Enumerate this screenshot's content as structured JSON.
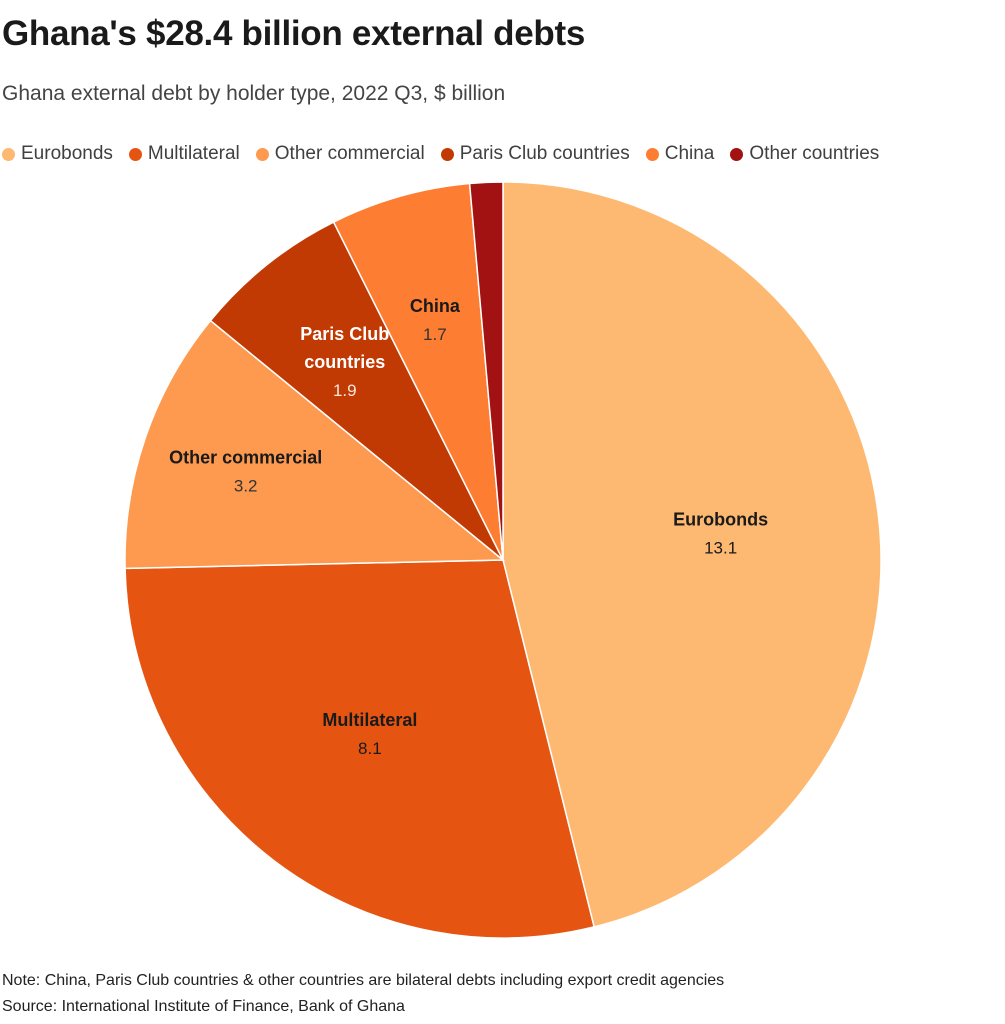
{
  "title": "Ghana's $28.4 billion external debts",
  "subtitle": "Ghana external debt by holder type, 2022 Q3, $ billion",
  "legend": [
    {
      "label": "Eurobonds",
      "color": "#fdb871"
    },
    {
      "label": "Multilateral",
      "color": "#e55511"
    },
    {
      "label": "Other commercial",
      "color": "#fd9a50"
    },
    {
      "label": "Paris Club countries",
      "color": "#c23a03"
    },
    {
      "label": "China",
      "color": "#fd7d32"
    },
    {
      "label": "Other countries",
      "color": "#a31212"
    }
  ],
  "chart_data": {
    "type": "pie",
    "categories": [
      "Eurobonds",
      "Multilateral",
      "Other commercial",
      "Paris Club countries",
      "China",
      "Other countries"
    ],
    "values": [
      13.1,
      8.1,
      3.2,
      1.9,
      1.7,
      0.4
    ],
    "slice_labels": [
      {
        "name_lines": [
          "Eurobonds"
        ],
        "value": "13.1"
      },
      {
        "name_lines": [
          "Multilateral"
        ],
        "value": "8.1"
      },
      {
        "name_lines": [
          "Other commercial"
        ],
        "value": "3.2"
      },
      {
        "name_lines": [
          "Paris Club",
          "countries"
        ],
        "value": "1.9"
      },
      {
        "name_lines": [
          "China"
        ],
        "value": "1.7"
      },
      null
    ],
    "colors": [
      "#fdb871",
      "#e55511",
      "#fd9a50",
      "#c23a03",
      "#fd7d32",
      "#a31212"
    ],
    "label_colors": [
      "#1a1a1a",
      "#1a1a1a",
      "#1a1a1a",
      "#ffffff",
      "#1a1a1a",
      "#ffffff"
    ],
    "value_colors": [
      "#1a1a1a",
      "#1a1a1a",
      "#333333",
      "#f5e6dc",
      "#333333",
      "#ffffff"
    ],
    "start_angle_deg": 0,
    "direction": "clockwise"
  },
  "note": "Note: China, Paris Club countries & other countries are bilateral debts including export credit agencies",
  "source": "Source: International Institute of Finance, Bank of Ghana"
}
